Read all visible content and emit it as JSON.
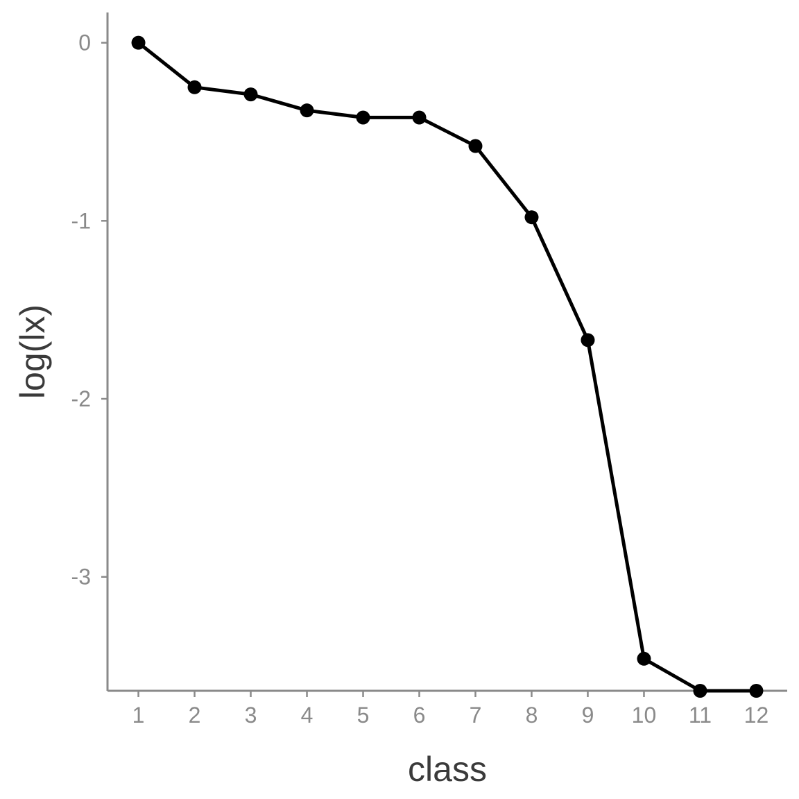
{
  "chart_data": {
    "type": "line",
    "xlabel": "class",
    "ylabel": "log(lx)",
    "x": [
      1,
      2,
      3,
      4,
      5,
      6,
      7,
      8,
      9,
      10,
      11,
      12
    ],
    "series": [
      {
        "values": [
          0,
          -0.25,
          -0.29,
          -0.38,
          -0.42,
          -0.42,
          -0.58,
          -0.98,
          -1.67,
          -3.46,
          -3.64,
          -3.64
        ]
      }
    ],
    "x_ticks": [
      1,
      2,
      3,
      4,
      5,
      6,
      7,
      8,
      9,
      10,
      11,
      12
    ],
    "y_ticks": [
      0,
      -1,
      -2,
      -3
    ],
    "xlim": [
      0.45,
      12.55
    ],
    "ylim": [
      -3.64,
      0.17
    ],
    "grid": false,
    "colors": {
      "line": "#000000",
      "axis": "#8a8a8a",
      "title": "#3a3a3a"
    }
  }
}
